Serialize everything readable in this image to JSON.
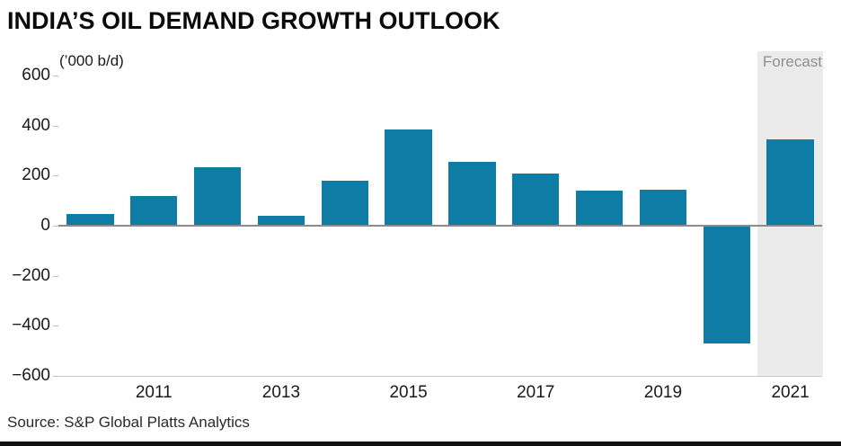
{
  "header": {
    "title": "INDIA’S OIL DEMAND GROWTH OUTLOOK"
  },
  "footer": {
    "source": "Source: S&P Global Platts Analytics"
  },
  "colors": {
    "bar": "#0e7ca4",
    "forecast_band": "#ebebeb",
    "zero_line": "#8c8c8c",
    "axis_line": "#c8c8c8",
    "forecast_text": "#8f8f8f"
  },
  "chart_data": {
    "type": "bar",
    "title": "INDIA’S OIL DEMAND GROWTH OUTLOOK",
    "ylabel": "(’000 b/d)",
    "x": [
      2010,
      2011,
      2012,
      2013,
      2014,
      2015,
      2016,
      2017,
      2018,
      2019,
      2020,
      2021
    ],
    "values": [
      45,
      120,
      235,
      40,
      180,
      385,
      255,
      210,
      140,
      145,
      -470,
      345
    ],
    "xticks": [
      2011,
      2013,
      2015,
      2017,
      2019,
      2021
    ],
    "yticks": [
      600,
      400,
      200,
      0,
      -200,
      -400,
      -600
    ],
    "ylim": [
      -600,
      600
    ],
    "grid": false,
    "legend": "none",
    "annotations": [
      {
        "text": "Forecast",
        "position": "top-right"
      }
    ],
    "forecast_start_index": 11
  }
}
